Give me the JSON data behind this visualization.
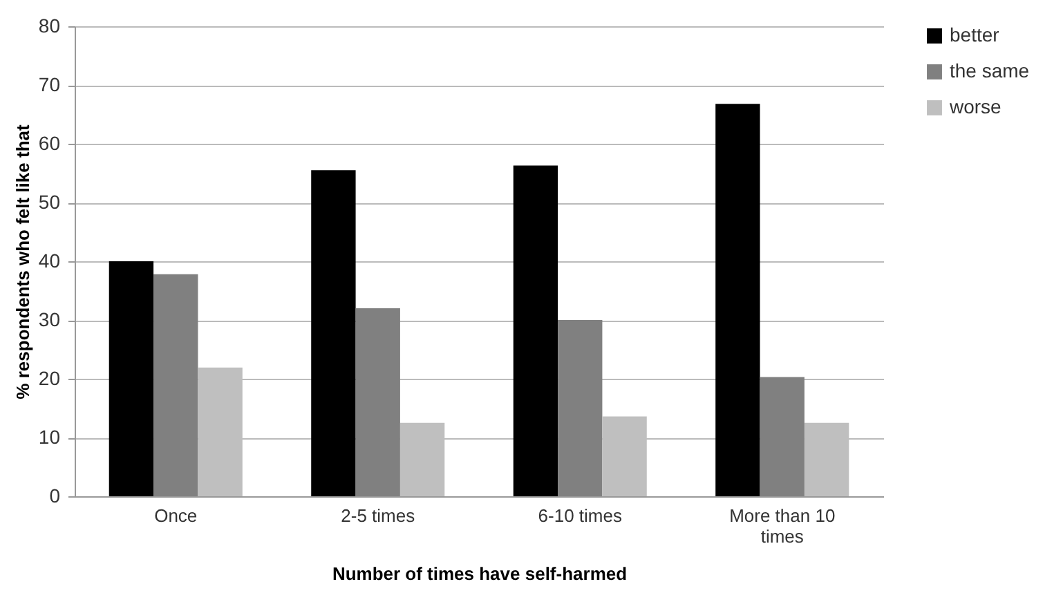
{
  "chart_data": {
    "type": "bar",
    "xlabel": "Number of times have self-harmed",
    "ylabel": "% respondents who felt like that",
    "categories": [
      "Once",
      "2-5 times",
      "6-10 times",
      "More than 10 times"
    ],
    "series": [
      {
        "name": "better",
        "color": "#000000",
        "values": [
          40,
          55.5,
          56.3,
          66.8
        ]
      },
      {
        "name": "the same",
        "color": "#808080",
        "values": [
          37.8,
          32,
          30,
          20.3
        ]
      },
      {
        "name": "worse",
        "color": "#bfbfbf",
        "values": [
          21.9,
          12.5,
          13.6,
          12.5
        ]
      }
    ],
    "ylim": [
      0,
      80
    ],
    "yticks": [
      0,
      10,
      20,
      30,
      40,
      50,
      60,
      70,
      80
    ],
    "grid": "y",
    "legend": "right"
  }
}
